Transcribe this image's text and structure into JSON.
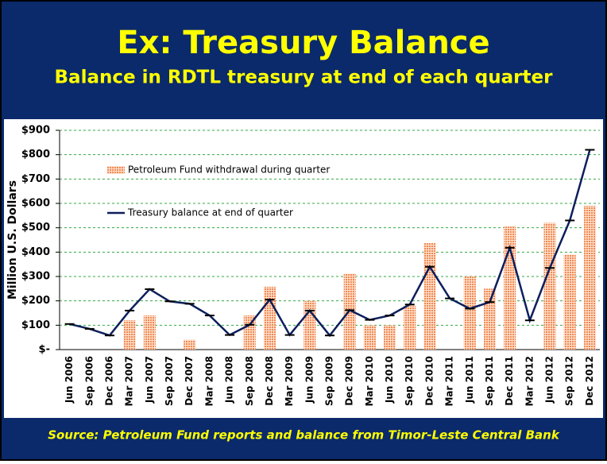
{
  "title": "Ex: Treasury Balance",
  "subtitle": "Balance in RDTL treasury at end of each quarter",
  "source": "Source: Petroleum Fund reports and balance from Timor-Leste Central Bank",
  "chart_data": {
    "type": "bar",
    "y_label": "Million U.S. Dollars",
    "categories": [
      "Jun 2006",
      "Sep 2006",
      "Dec 2006",
      "Mar 2007",
      "Jun 2007",
      "Sep 2007",
      "Dec 2007",
      "Mar 2008",
      "Jun 2008",
      "Sep 2008",
      "Dec 2008",
      "Mar 2009",
      "Jun 2009",
      "Sep 2009",
      "Dec 2009",
      "Mar 2010",
      "Jun 2010",
      "Sep 2010",
      "Dec 2010",
      "Mar 2011",
      "Jun 2011",
      "Sep 2011",
      "Dec 2011",
      "Mar 2012",
      "Jun 2012",
      "Sep 2012",
      "Dec 2012"
    ],
    "series": [
      {
        "name": "Petroleum Fund withdrawal during quarter",
        "type": "bar",
        "color": "#f08a55",
        "values": [
          null,
          null,
          null,
          120,
          140,
          null,
          40,
          null,
          null,
          140,
          258,
          null,
          200,
          null,
          312,
          100,
          100,
          180,
          437,
          null,
          300,
          250,
          505,
          null,
          520,
          390,
          590
        ]
      },
      {
        "name": "Treasury balance at end of quarter",
        "type": "line",
        "color": "#0d1f5c",
        "values": [
          105,
          85,
          58,
          160,
          248,
          198,
          188,
          140,
          60,
          102,
          205,
          60,
          160,
          58,
          162,
          122,
          140,
          185,
          340,
          210,
          168,
          195,
          418,
          120,
          335,
          530,
          820
        ]
      }
    ],
    "ylim": [
      0,
      900
    ],
    "yticks": [
      {
        "value": 0,
        "label": "$-"
      },
      {
        "value": 100,
        "label": "$100"
      },
      {
        "value": 200,
        "label": "$200"
      },
      {
        "value": 300,
        "label": "$300"
      },
      {
        "value": 400,
        "label": "$400"
      },
      {
        "value": 500,
        "label": "$500"
      },
      {
        "value": 600,
        "label": "$600"
      },
      {
        "value": 700,
        "label": "$700"
      },
      {
        "value": 800,
        "label": "$800"
      },
      {
        "value": 900,
        "label": "$900"
      }
    ],
    "grid": true,
    "legend": "upper left"
  }
}
